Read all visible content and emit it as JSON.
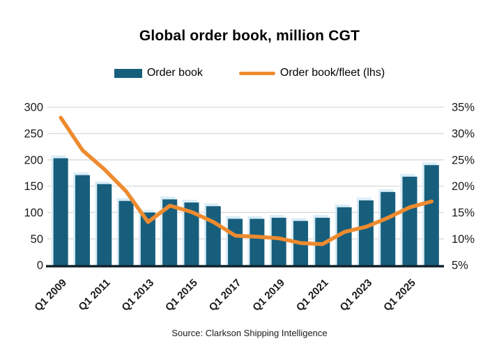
{
  "title": "Global order book, million CGT",
  "legend": [
    {
      "label": "Order book",
      "type": "bar"
    },
    {
      "label": "Order book/fleet (lhs)",
      "type": "line"
    }
  ],
  "source": "Source: Clarkson Shipping Intelligence",
  "colors": {
    "bar": "#175E7D",
    "bar_halo": "#D9EDF7",
    "line": "#EE8B2F",
    "grid": "#D9D9D9",
    "axis_baseline": "#13242E",
    "tick_text": "#1A1A1A",
    "title_text": "#000000"
  },
  "chart_data": {
    "type": "bar",
    "title": "Global order book, million CGT",
    "categories": [
      "Q1 2009",
      "Q1 2010",
      "Q1 2011",
      "Q1 2012",
      "Q1 2013",
      "Q1 2014",
      "Q1 2015",
      "Q1 2016",
      "Q1 2017",
      "Q1 2018",
      "Q1 2019",
      "Q1 2020",
      "Q1 2021",
      "Q1 2022",
      "Q1 2023",
      "Q1 2024",
      "Q1 2025",
      "Q1 2026"
    ],
    "x_tick_labels_shown": [
      "Q1 2009",
      "Q1 2011",
      "Q1 2013",
      "Q1 2015",
      "Q1 2017",
      "Q1 2019",
      "Q1 2021",
      "Q1 2023",
      "Q1 2025"
    ],
    "x_tick_step": 2,
    "series": [
      {
        "name": "Order book",
        "type": "bar",
        "axis": "left",
        "values": [
          203,
          171,
          154,
          122,
          100,
          125,
          119,
          112,
          88,
          88,
          90,
          84,
          90,
          110,
          123,
          139,
          168,
          190
        ]
      },
      {
        "name": "Order book/fleet (lhs)",
        "type": "line",
        "axis": "right",
        "values": [
          33.0,
          26.8,
          23.2,
          19.0,
          13.2,
          16.3,
          15.1,
          13.2,
          10.6,
          10.4,
          10.1,
          9.2,
          9.0,
          11.3,
          12.3,
          14.0,
          16.0,
          17.1
        ]
      }
    ],
    "left_axis": {
      "ticks": [
        0,
        50,
        100,
        150,
        200,
        250,
        300
      ],
      "range": [
        0,
        300
      ],
      "label": ""
    },
    "right_axis": {
      "ticks": [
        5,
        10,
        15,
        20,
        25,
        30,
        35
      ],
      "tick_suffix": "%",
      "range": [
        5,
        35
      ],
      "label": ""
    },
    "grid": true,
    "legend_position": "top",
    "xlabel": "",
    "ylabel": ""
  }
}
